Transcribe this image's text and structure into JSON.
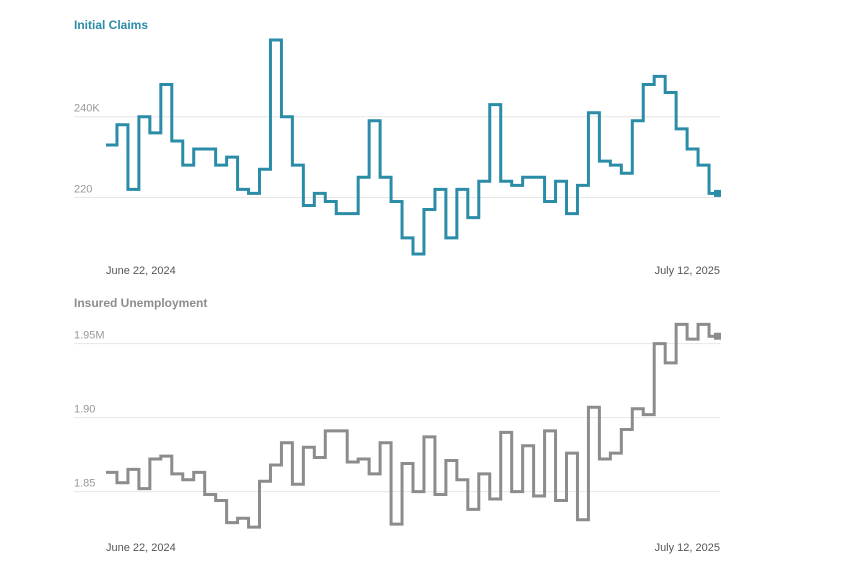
{
  "chart_data": [
    {
      "type": "line",
      "step": true,
      "title": "Initial Claims",
      "color": "#2b8ca8",
      "ylim": [
        205,
        260
      ],
      "yticks": [
        {
          "value": 220,
          "label": "220"
        },
        {
          "value": 240,
          "label": "240K"
        }
      ],
      "grid": true,
      "xticks": [
        "June 22, 2024",
        "July 12, 2025"
      ],
      "series": [
        {
          "values": [
            233,
            238,
            222,
            240,
            236,
            248,
            234,
            228,
            232,
            232,
            228,
            230,
            222,
            221,
            227,
            259,
            240,
            228,
            218,
            221,
            219,
            216,
            216,
            225,
            239,
            225,
            219,
            210,
            206,
            217,
            222,
            210,
            222,
            215,
            224,
            243,
            224,
            223,
            225,
            225,
            219,
            224,
            216,
            223,
            241,
            229,
            228,
            226,
            239,
            248,
            250,
            246,
            237,
            232,
            228,
            221
          ]
        }
      ]
    },
    {
      "type": "line",
      "step": true,
      "title": "Insured Unemployment",
      "color": "#8c8c8c",
      "ylim": [
        1.82,
        1.97
      ],
      "yticks": [
        {
          "value": 1.85,
          "label": "1.85"
        },
        {
          "value": 1.9,
          "label": "1.90"
        },
        {
          "value": 1.95,
          "label": "1.95M"
        }
      ],
      "grid": true,
      "xticks": [
        "June 22, 2024",
        "July 12, 2025"
      ],
      "series": [
        {
          "values": [
            1.863,
            1.856,
            1.865,
            1.852,
            1.872,
            1.874,
            1.862,
            1.858,
            1.863,
            1.848,
            1.844,
            1.829,
            1.832,
            1.826,
            1.857,
            1.868,
            1.883,
            1.855,
            1.88,
            1.873,
            1.891,
            1.891,
            1.87,
            1.872,
            1.862,
            1.883,
            1.828,
            1.869,
            1.85,
            1.887,
            1.848,
            1.871,
            1.858,
            1.838,
            1.862,
            1.845,
            1.89,
            1.85,
            1.881,
            1.847,
            1.891,
            1.844,
            1.876,
            1.831,
            1.907,
            1.872,
            1.876,
            1.892,
            1.906,
            1.902,
            1.95,
            1.937,
            1.963,
            1.953,
            1.963,
            1.955
          ]
        }
      ]
    }
  ]
}
